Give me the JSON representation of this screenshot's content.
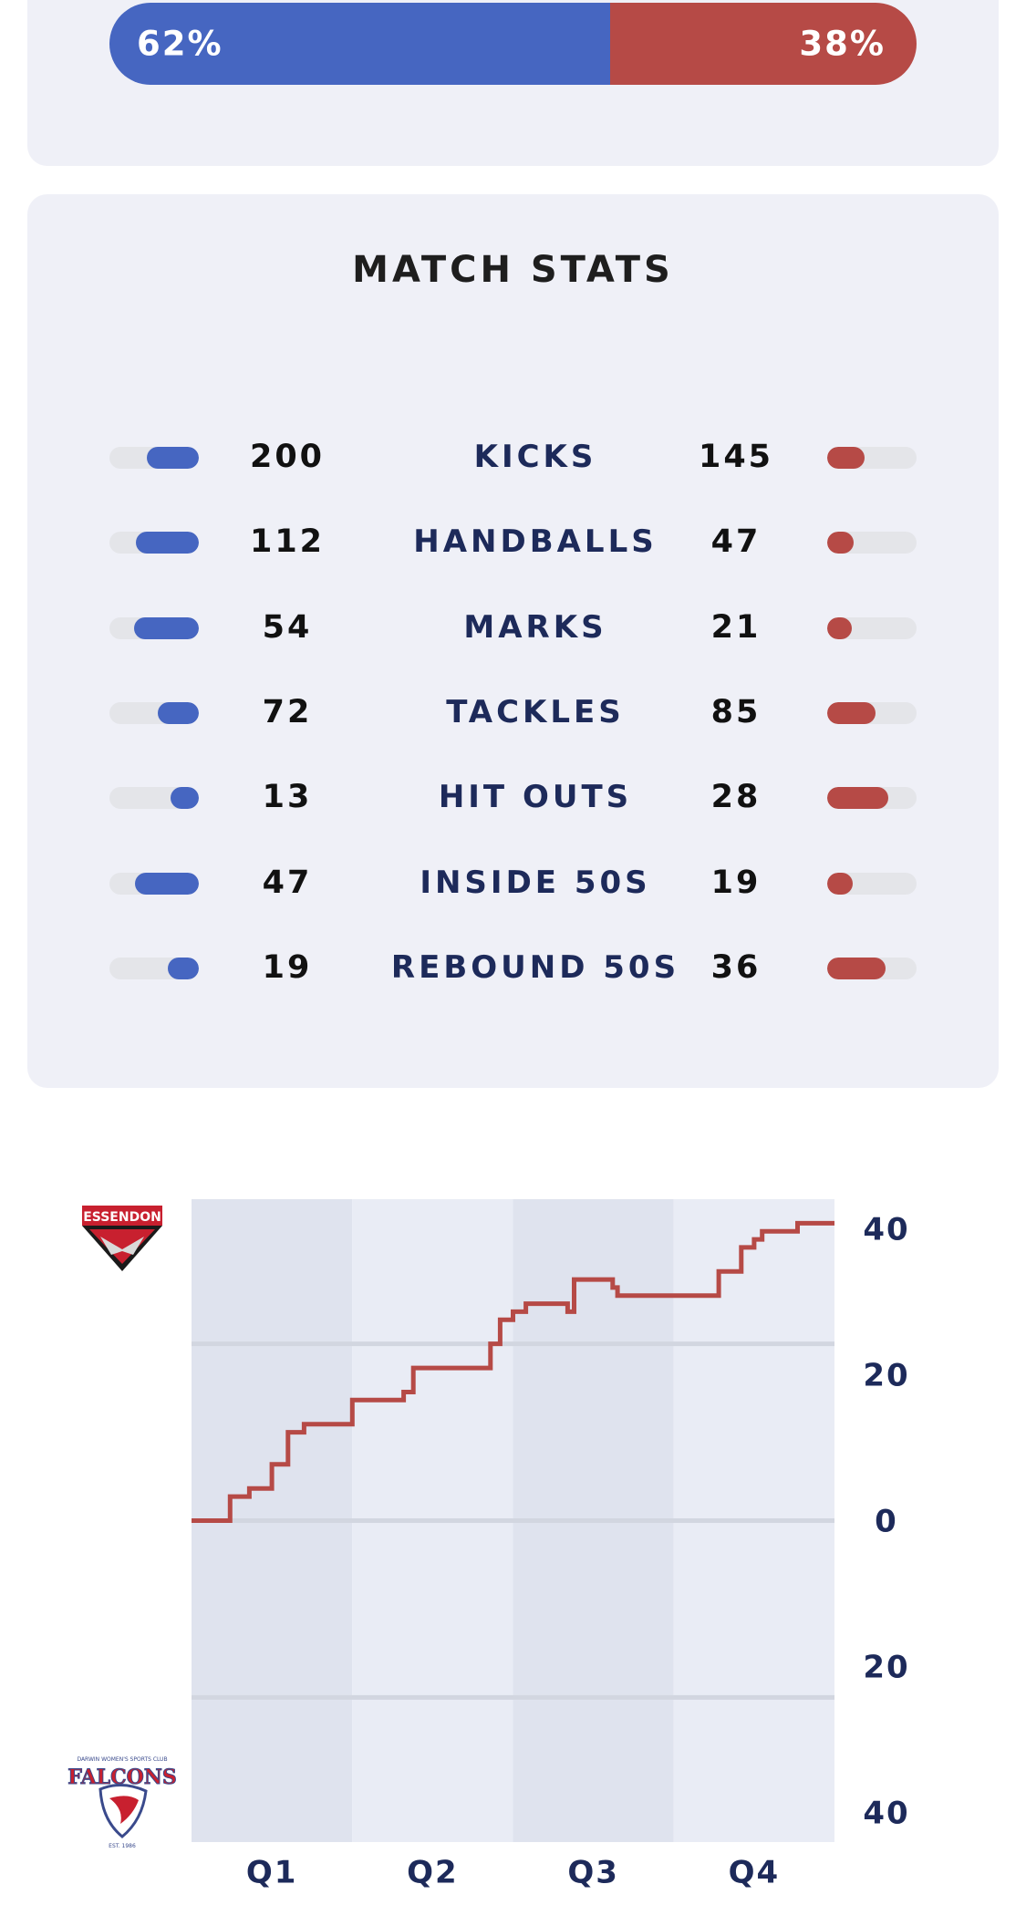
{
  "possession": {
    "left_label": "62%",
    "right_label": "38%",
    "left_share": 0.62,
    "left_color": "#4666c1",
    "right_color": "#b64a46"
  },
  "stats": {
    "title": "MATCH STATS",
    "rows": [
      {
        "label": "KICKS",
        "left": "200",
        "right": "145",
        "left_fill": 0.58,
        "right_fill": 0.42
      },
      {
        "label": "HANDBALLS",
        "left": "112",
        "right": "47",
        "left_fill": 0.7,
        "right_fill": 0.3
      },
      {
        "label": "MARKS",
        "left": "54",
        "right": "21",
        "left_fill": 0.72,
        "right_fill": 0.28
      },
      {
        "label": "TACKLES",
        "left": "72",
        "right": "85",
        "left_fill": 0.46,
        "right_fill": 0.54
      },
      {
        "label": "HIT OUTS",
        "left": "13",
        "right": "28",
        "left_fill": 0.32,
        "right_fill": 0.68
      },
      {
        "label": "INSIDE 50S",
        "left": "47",
        "right": "19",
        "left_fill": 0.71,
        "right_fill": 0.29
      },
      {
        "label": "REBOUND 50S",
        "left": "19",
        "right": "36",
        "left_fill": 0.35,
        "right_fill": 0.65
      }
    ]
  },
  "logos": {
    "top_team": "ESSENDON",
    "top_icon": "essendon-logo-icon",
    "bottom_team_top": "DARWIN WOMEN'S SPORTS CLUB",
    "bottom_team": "FALCONS",
    "bottom_team_est": "EST. 1986",
    "bottom_icon": "falcons-logo-icon"
  },
  "chart_data": {
    "type": "line",
    "xlabels": [
      "Q1",
      "Q2",
      "Q3",
      "Q4"
    ],
    "yticks": [
      "40",
      "20",
      "0",
      "20",
      "40"
    ],
    "ylim": [
      -40,
      40
    ],
    "line_color": "#b64a46",
    "series": [
      {
        "values": [
          [
            0.0,
            0
          ],
          [
            0.24,
            0
          ],
          [
            0.24,
            3
          ],
          [
            0.36,
            3
          ],
          [
            0.36,
            4
          ],
          [
            0.5,
            4
          ],
          [
            0.5,
            7
          ],
          [
            0.6,
            7
          ],
          [
            0.6,
            11
          ],
          [
            0.7,
            11
          ],
          [
            0.7,
            12
          ],
          [
            1.0,
            12
          ],
          [
            1.0,
            15
          ],
          [
            1.32,
            15
          ],
          [
            1.32,
            16
          ],
          [
            1.38,
            16
          ],
          [
            1.38,
            19
          ],
          [
            1.86,
            19
          ],
          [
            1.86,
            22
          ],
          [
            1.92,
            22
          ],
          [
            1.92,
            25
          ],
          [
            2.0,
            25
          ],
          [
            2.0,
            26
          ],
          [
            2.08,
            26
          ],
          [
            2.08,
            27
          ],
          [
            2.34,
            27
          ],
          [
            2.34,
            26
          ],
          [
            2.38,
            26
          ],
          [
            2.38,
            30
          ],
          [
            2.62,
            30
          ],
          [
            2.62,
            29
          ],
          [
            2.65,
            29
          ],
          [
            2.65,
            28
          ],
          [
            3.28,
            28
          ],
          [
            3.28,
            31
          ],
          [
            3.42,
            31
          ],
          [
            3.42,
            34
          ],
          [
            3.5,
            34
          ],
          [
            3.5,
            35
          ],
          [
            3.55,
            35
          ],
          [
            3.55,
            36
          ],
          [
            3.77,
            36
          ],
          [
            3.77,
            37
          ],
          [
            4.0,
            37
          ]
        ]
      }
    ]
  }
}
